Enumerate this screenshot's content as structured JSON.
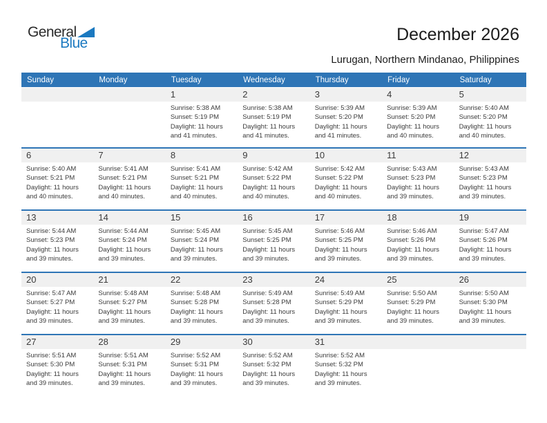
{
  "logo": {
    "part1": "General",
    "part2": "Blue"
  },
  "header": {
    "title": "December 2026",
    "subtitle": "Lurugan, Northern Mindanao, Philippines"
  },
  "colors": {
    "header_bg": "#2E75B6",
    "divider": "#2E75B6",
    "band_bg": "#F0F0F0",
    "logo_blue": "#1B79C0",
    "text_dark": "#1C1C1C",
    "text_body": "#3B3B3B"
  },
  "calendar": {
    "day_headers": [
      "Sunday",
      "Monday",
      "Tuesday",
      "Wednesday",
      "Thursday",
      "Friday",
      "Saturday"
    ],
    "weeks": [
      [
        null,
        null,
        {
          "date": "1",
          "sunrise": "Sunrise: 5:38 AM",
          "sunset": "Sunset: 5:19 PM",
          "daylight": "Daylight: 11 hours and 41 minutes."
        },
        {
          "date": "2",
          "sunrise": "Sunrise: 5:38 AM",
          "sunset": "Sunset: 5:19 PM",
          "daylight": "Daylight: 11 hours and 41 minutes."
        },
        {
          "date": "3",
          "sunrise": "Sunrise: 5:39 AM",
          "sunset": "Sunset: 5:20 PM",
          "daylight": "Daylight: 11 hours and 41 minutes."
        },
        {
          "date": "4",
          "sunrise": "Sunrise: 5:39 AM",
          "sunset": "Sunset: 5:20 PM",
          "daylight": "Daylight: 11 hours and 40 minutes."
        },
        {
          "date": "5",
          "sunrise": "Sunrise: 5:40 AM",
          "sunset": "Sunset: 5:20 PM",
          "daylight": "Daylight: 11 hours and 40 minutes."
        }
      ],
      [
        {
          "date": "6",
          "sunrise": "Sunrise: 5:40 AM",
          "sunset": "Sunset: 5:21 PM",
          "daylight": "Daylight: 11 hours and 40 minutes."
        },
        {
          "date": "7",
          "sunrise": "Sunrise: 5:41 AM",
          "sunset": "Sunset: 5:21 PM",
          "daylight": "Daylight: 11 hours and 40 minutes."
        },
        {
          "date": "8",
          "sunrise": "Sunrise: 5:41 AM",
          "sunset": "Sunset: 5:21 PM",
          "daylight": "Daylight: 11 hours and 40 minutes."
        },
        {
          "date": "9",
          "sunrise": "Sunrise: 5:42 AM",
          "sunset": "Sunset: 5:22 PM",
          "daylight": "Daylight: 11 hours and 40 minutes."
        },
        {
          "date": "10",
          "sunrise": "Sunrise: 5:42 AM",
          "sunset": "Sunset: 5:22 PM",
          "daylight": "Daylight: 11 hours and 40 minutes."
        },
        {
          "date": "11",
          "sunrise": "Sunrise: 5:43 AM",
          "sunset": "Sunset: 5:23 PM",
          "daylight": "Daylight: 11 hours and 39 minutes."
        },
        {
          "date": "12",
          "sunrise": "Sunrise: 5:43 AM",
          "sunset": "Sunset: 5:23 PM",
          "daylight": "Daylight: 11 hours and 39 minutes."
        }
      ],
      [
        {
          "date": "13",
          "sunrise": "Sunrise: 5:44 AM",
          "sunset": "Sunset: 5:23 PM",
          "daylight": "Daylight: 11 hours and 39 minutes."
        },
        {
          "date": "14",
          "sunrise": "Sunrise: 5:44 AM",
          "sunset": "Sunset: 5:24 PM",
          "daylight": "Daylight: 11 hours and 39 minutes."
        },
        {
          "date": "15",
          "sunrise": "Sunrise: 5:45 AM",
          "sunset": "Sunset: 5:24 PM",
          "daylight": "Daylight: 11 hours and 39 minutes."
        },
        {
          "date": "16",
          "sunrise": "Sunrise: 5:45 AM",
          "sunset": "Sunset: 5:25 PM",
          "daylight": "Daylight: 11 hours and 39 minutes."
        },
        {
          "date": "17",
          "sunrise": "Sunrise: 5:46 AM",
          "sunset": "Sunset: 5:25 PM",
          "daylight": "Daylight: 11 hours and 39 minutes."
        },
        {
          "date": "18",
          "sunrise": "Sunrise: 5:46 AM",
          "sunset": "Sunset: 5:26 PM",
          "daylight": "Daylight: 11 hours and 39 minutes."
        },
        {
          "date": "19",
          "sunrise": "Sunrise: 5:47 AM",
          "sunset": "Sunset: 5:26 PM",
          "daylight": "Daylight: 11 hours and 39 minutes."
        }
      ],
      [
        {
          "date": "20",
          "sunrise": "Sunrise: 5:47 AM",
          "sunset": "Sunset: 5:27 PM",
          "daylight": "Daylight: 11 hours and 39 minutes."
        },
        {
          "date": "21",
          "sunrise": "Sunrise: 5:48 AM",
          "sunset": "Sunset: 5:27 PM",
          "daylight": "Daylight: 11 hours and 39 minutes."
        },
        {
          "date": "22",
          "sunrise": "Sunrise: 5:48 AM",
          "sunset": "Sunset: 5:28 PM",
          "daylight": "Daylight: 11 hours and 39 minutes."
        },
        {
          "date": "23",
          "sunrise": "Sunrise: 5:49 AM",
          "sunset": "Sunset: 5:28 PM",
          "daylight": "Daylight: 11 hours and 39 minutes."
        },
        {
          "date": "24",
          "sunrise": "Sunrise: 5:49 AM",
          "sunset": "Sunset: 5:29 PM",
          "daylight": "Daylight: 11 hours and 39 minutes."
        },
        {
          "date": "25",
          "sunrise": "Sunrise: 5:50 AM",
          "sunset": "Sunset: 5:29 PM",
          "daylight": "Daylight: 11 hours and 39 minutes."
        },
        {
          "date": "26",
          "sunrise": "Sunrise: 5:50 AM",
          "sunset": "Sunset: 5:30 PM",
          "daylight": "Daylight: 11 hours and 39 minutes."
        }
      ],
      [
        {
          "date": "27",
          "sunrise": "Sunrise: 5:51 AM",
          "sunset": "Sunset: 5:30 PM",
          "daylight": "Daylight: 11 hours and 39 minutes."
        },
        {
          "date": "28",
          "sunrise": "Sunrise: 5:51 AM",
          "sunset": "Sunset: 5:31 PM",
          "daylight": "Daylight: 11 hours and 39 minutes."
        },
        {
          "date": "29",
          "sunrise": "Sunrise: 5:52 AM",
          "sunset": "Sunset: 5:31 PM",
          "daylight": "Daylight: 11 hours and 39 minutes."
        },
        {
          "date": "30",
          "sunrise": "Sunrise: 5:52 AM",
          "sunset": "Sunset: 5:32 PM",
          "daylight": "Daylight: 11 hours and 39 minutes."
        },
        {
          "date": "31",
          "sunrise": "Sunrise: 5:52 AM",
          "sunset": "Sunset: 5:32 PM",
          "daylight": "Daylight: 11 hours and 39 minutes."
        },
        null,
        null
      ]
    ]
  }
}
